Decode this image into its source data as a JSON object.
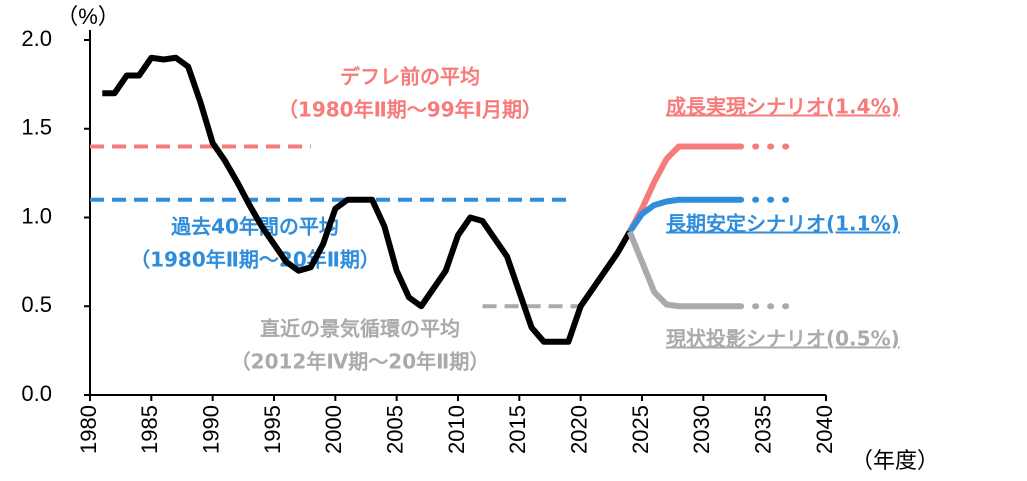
{
  "chart_data": {
    "type": "line",
    "y_unit": "（%）",
    "x_unit": "（年度）",
    "xlim": [
      1980,
      2040
    ],
    "xticks": [
      1980,
      1985,
      1990,
      1995,
      2000,
      2005,
      2010,
      2015,
      2020,
      2025,
      2030,
      2035,
      2040
    ],
    "ylim": [
      0,
      2
    ],
    "yticks": [
      {
        "value": 0,
        "label": "0.0"
      },
      {
        "value": 0.5,
        "label": "0.5"
      },
      {
        "value": 1,
        "label": "1.0"
      },
      {
        "value": 1.5,
        "label": "1.5"
      },
      {
        "value": 2,
        "label": "2.0"
      }
    ],
    "dotted_after": 2033,
    "series": [
      {
        "color": "#000000",
        "x": [
          1981,
          1982,
          1983,
          1984,
          1985,
          1986,
          1987,
          1988,
          1989,
          1990,
          1991,
          1992,
          1993,
          1994,
          1995,
          1996,
          1997,
          1998,
          1999,
          2000,
          2001,
          2002,
          2003,
          2004,
          2005,
          2006,
          2007,
          2008,
          2009,
          2010,
          2011,
          2012,
          2013,
          2014,
          2015,
          2016,
          2017,
          2018,
          2019,
          2020,
          2021,
          2022,
          2023,
          2024
        ],
        "values": [
          1.7,
          1.7,
          1.8,
          1.8,
          1.9,
          1.89,
          1.9,
          1.85,
          1.65,
          1.42,
          1.32,
          1.2,
          1.07,
          0.95,
          0.85,
          0.75,
          0.7,
          0.72,
          0.85,
          1.05,
          1.1,
          1.1,
          1.1,
          0.95,
          0.7,
          0.55,
          0.5,
          0.6,
          0.7,
          0.9,
          1.0,
          0.98,
          0.88,
          0.78,
          0.58,
          0.38,
          0.3,
          0.3,
          0.3,
          0.5,
          0.6,
          0.7,
          0.8,
          0.92
        ]
      },
      {
        "name": "成長実現シナリオ(1.4%)",
        "color": "#f77b7b",
        "x": [
          2024,
          2025,
          2026,
          2027,
          2028,
          2030,
          2033,
          2037
        ],
        "values": [
          0.92,
          1.05,
          1.2,
          1.33,
          1.4,
          1.4,
          1.4,
          1.4
        ]
      },
      {
        "name": "長期安定シナリオ(1.1%)",
        "color": "#2f8ddb",
        "x": [
          2024,
          2025,
          2026,
          2027,
          2028,
          2030,
          2033,
          2037
        ],
        "values": [
          0.92,
          1.02,
          1.07,
          1.09,
          1.1,
          1.1,
          1.1,
          1.1
        ]
      },
      {
        "name": "現状投影シナリオ(0.5%)",
        "color": "#aaaaaa",
        "x": [
          2024,
          2025,
          2026,
          2027,
          2028,
          2030,
          2033,
          2037
        ],
        "values": [
          0.92,
          0.75,
          0.58,
          0.51,
          0.5,
          0.5,
          0.5,
          0.5
        ]
      }
    ],
    "reference_lines": [
      {
        "value": 1.4,
        "x": [
          1980,
          1998
        ],
        "color": "#f77b7b",
        "label": [
          "デフレ前の平均",
          "（1980年Ⅱ期～99年Ⅰ月期）"
        ]
      },
      {
        "value": 1.1,
        "x": [
          1980,
          2019
        ],
        "color": "#2f8ddb",
        "label": [
          "過去40年間の平均",
          "（1980年Ⅱ期～20年Ⅱ期）"
        ]
      },
      {
        "value": 0.5,
        "x": [
          2012,
          2020
        ],
        "color": "#aaaaaa",
        "label": [
          "直近の景気循環の平均",
          "（2012年Ⅳ期～20年Ⅱ期）"
        ]
      }
    ]
  }
}
